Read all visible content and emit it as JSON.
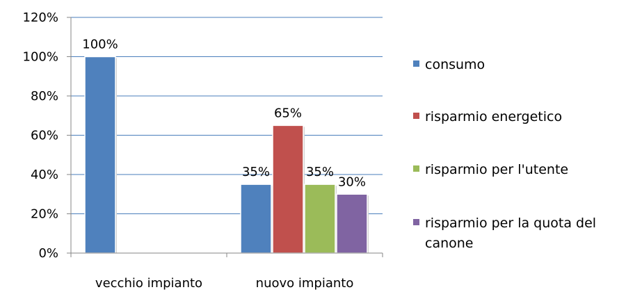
{
  "chart_data": {
    "type": "bar",
    "title": "",
    "xlabel": "",
    "ylabel": "",
    "ylim": [
      0,
      120
    ],
    "yticks": [
      "0%",
      "20%",
      "40%",
      "60%",
      "80%",
      "100%",
      "120%"
    ],
    "grid": true,
    "legend_position": "right",
    "categories": [
      "vecchio impianto",
      "nuovo impianto"
    ],
    "series": [
      {
        "name": "consumo",
        "color": "#4F81BD",
        "values": [
          100,
          35
        ],
        "labels": [
          "100%",
          "35%"
        ]
      },
      {
        "name": "risparmio energetico",
        "color": "#C0504D",
        "values": [
          null,
          65
        ],
        "labels": [
          null,
          "65%"
        ]
      },
      {
        "name": "risparmio per l'utente",
        "color": "#9BBB59",
        "values": [
          null,
          35
        ],
        "labels": [
          null,
          "35%"
        ]
      },
      {
        "name": "risparmio per la quota del canone",
        "color": "#8064A2",
        "values": [
          null,
          30
        ],
        "labels": [
          null,
          "30%"
        ]
      }
    ]
  }
}
